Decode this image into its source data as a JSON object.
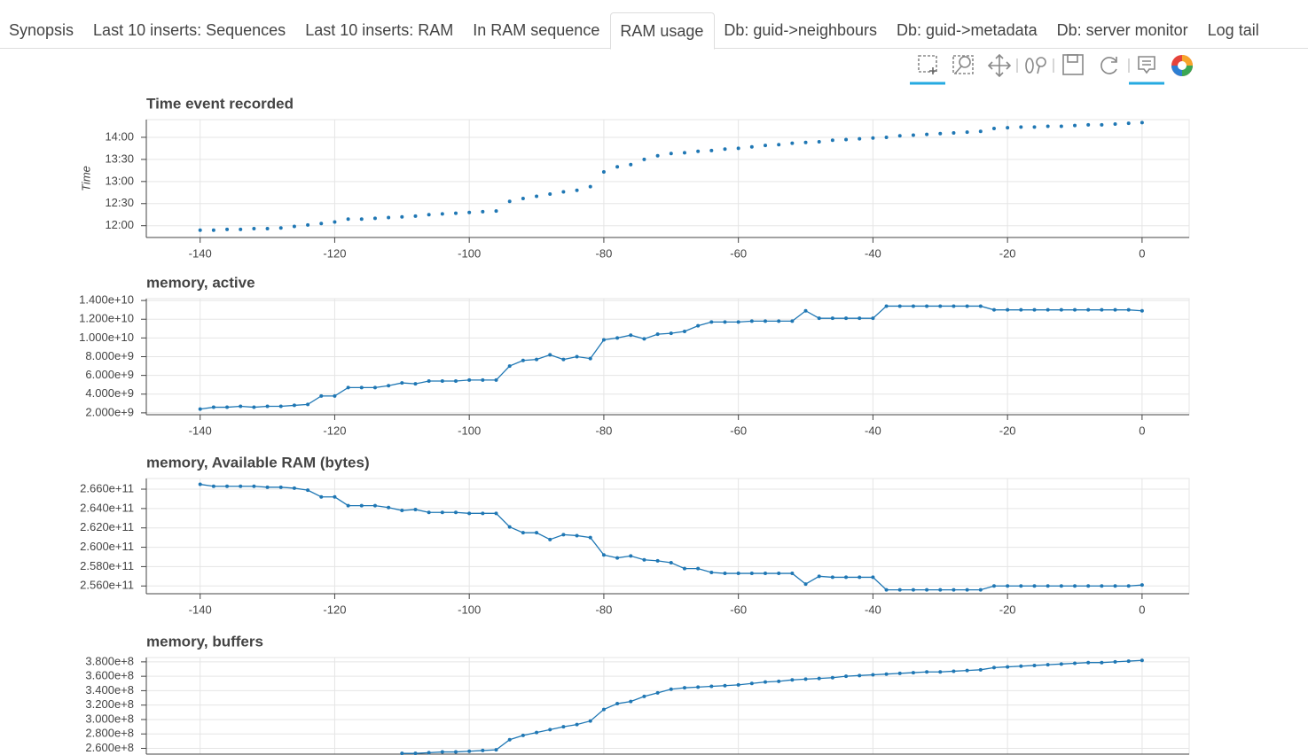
{
  "tabs": {
    "items": [
      "Synopsis",
      "Last 10 inserts: Sequences",
      "Last 10 inserts: RAM",
      "In RAM sequence",
      "RAM usage",
      "Db: guid->neighbours",
      "Db: guid->metadata",
      "Db: server monitor",
      "Log tail"
    ],
    "active": 4
  },
  "chart_data": [
    {
      "type": "scatter",
      "title": "Time event recorded",
      "y_label": "Time",
      "color": "#1f77b4",
      "grid": true,
      "x": [
        -140,
        -138,
        -136,
        -134,
        -132,
        -130,
        -128,
        -126,
        -124,
        -122,
        -120,
        -118,
        -116,
        -114,
        -112,
        -110,
        -108,
        -106,
        -104,
        -102,
        -100,
        -98,
        -96,
        -94,
        -92,
        -90,
        -88,
        -86,
        -84,
        -82,
        -80,
        -78,
        -76,
        -74,
        -72,
        -70,
        -68,
        -66,
        -64,
        -62,
        -60,
        -58,
        -56,
        -54,
        -52,
        -50,
        -48,
        -46,
        -44,
        -42,
        -40,
        -38,
        -36,
        -34,
        -32,
        -30,
        -28,
        -26,
        -24,
        -22,
        -20,
        -18,
        -16,
        -14,
        -12,
        -10,
        -8,
        -6,
        -4,
        -2,
        0
      ],
      "values": [
        714,
        714,
        715,
        715,
        716,
        716,
        717,
        719,
        721,
        723,
        725,
        729,
        729,
        730,
        731,
        732,
        733,
        735,
        736,
        737,
        738,
        739,
        740,
        753,
        757,
        760,
        763,
        766,
        768,
        773,
        793,
        800,
        803,
        810,
        815,
        818,
        819,
        821,
        822,
        824,
        825,
        827,
        829,
        830,
        832,
        833,
        834,
        836,
        837,
        838,
        839,
        840,
        842,
        843,
        844,
        845,
        846,
        847,
        848,
        852,
        853,
        854,
        854,
        855,
        855,
        856,
        857,
        857,
        858,
        859,
        860
      ],
      "xlim": [
        -148,
        7
      ],
      "xticks": [
        -140,
        -120,
        -100,
        -80,
        -60,
        -40,
        -20,
        0
      ],
      "ylim": [
        704,
        864
      ],
      "yticks": [
        {
          "value": 720,
          "label": "12:00"
        },
        {
          "value": 750,
          "label": "12:30"
        },
        {
          "value": 780,
          "label": "13:00"
        },
        {
          "value": 810,
          "label": "13:30"
        },
        {
          "value": 840,
          "label": "14:00"
        }
      ]
    },
    {
      "type": "line",
      "title": "memory, active",
      "color": "#1f77b4",
      "grid": true,
      "x": [
        -140,
        -138,
        -136,
        -134,
        -132,
        -130,
        -128,
        -126,
        -124,
        -122,
        -120,
        -118,
        -116,
        -114,
        -112,
        -110,
        -108,
        -106,
        -104,
        -102,
        -100,
        -98,
        -96,
        -94,
        -92,
        -90,
        -88,
        -86,
        -84,
        -82,
        -80,
        -78,
        -76,
        -74,
        -72,
        -70,
        -68,
        -66,
        -64,
        -62,
        -60,
        -58,
        -56,
        -54,
        -52,
        -50,
        -48,
        -46,
        -44,
        -42,
        -40,
        -38,
        -36,
        -34,
        -32,
        -30,
        -28,
        -26,
        -24,
        -22,
        -20,
        -18,
        -16,
        -14,
        -12,
        -10,
        -8,
        -6,
        -4,
        -2,
        0
      ],
      "values": [
        2400000000.0,
        2600000000.0,
        2600000000.0,
        2700000000.0,
        2600000000.0,
        2700000000.0,
        2700000000.0,
        2800000000.0,
        2900000000.0,
        3800000000.0,
        3800000000.0,
        4700000000.0,
        4700000000.0,
        4700000000.0,
        4900000000.0,
        5200000000.0,
        5100000000.0,
        5400000000.0,
        5400000000.0,
        5400000000.0,
        5500000000.0,
        5500000000.0,
        5500000000.0,
        7000000000.0,
        7600000000.0,
        7700000000.0,
        8200000000.0,
        7700000000.0,
        8000000000.0,
        7800000000.0,
        9800000000.0,
        10000000000.0,
        10300000000.0,
        9900000000.0,
        10400000000.0,
        10500000000.0,
        10700000000.0,
        11300000000.0,
        11700000000.0,
        11700000000.0,
        11700000000.0,
        11800000000.0,
        11800000000.0,
        11800000000.0,
        11800000000.0,
        12900000000.0,
        12100000000.0,
        12100000000.0,
        12100000000.0,
        12100000000.0,
        12100000000.0,
        13400000000.0,
        13400000000.0,
        13400000000.0,
        13400000000.0,
        13400000000.0,
        13400000000.0,
        13400000000.0,
        13400000000.0,
        13000000000.0,
        13000000000.0,
        13000000000.0,
        13000000000.0,
        13000000000.0,
        13000000000.0,
        13000000000.0,
        13000000000.0,
        13000000000.0,
        13000000000.0,
        13000000000.0,
        12900000000.0
      ],
      "xlim": [
        -148,
        7
      ],
      "xticks": [
        -140,
        -120,
        -100,
        -80,
        -60,
        -40,
        -20,
        0
      ],
      "ylim": [
        1800000000.0,
        14200000000.0
      ],
      "yticks": [
        {
          "value": 2000000000.0,
          "label": "2.000e+9"
        },
        {
          "value": 4000000000.0,
          "label": "4.000e+9"
        },
        {
          "value": 6000000000.0,
          "label": "6.000e+9"
        },
        {
          "value": 8000000000.0,
          "label": "8.000e+9"
        },
        {
          "value": 10000000000.0,
          "label": "1.000e+10"
        },
        {
          "value": 12000000000.0,
          "label": "1.200e+10"
        },
        {
          "value": 14000000000.0,
          "label": "1.400e+10"
        }
      ]
    },
    {
      "type": "line",
      "title": "memory, Available RAM (bytes)",
      "color": "#1f77b4",
      "grid": true,
      "x": [
        -140,
        -138,
        -136,
        -134,
        -132,
        -130,
        -128,
        -126,
        -124,
        -122,
        -120,
        -118,
        -116,
        -114,
        -112,
        -110,
        -108,
        -106,
        -104,
        -102,
        -100,
        -98,
        -96,
        -94,
        -92,
        -90,
        -88,
        -86,
        -84,
        -82,
        -80,
        -78,
        -76,
        -74,
        -72,
        -70,
        -68,
        -66,
        -64,
        -62,
        -60,
        -58,
        -56,
        -54,
        -52,
        -50,
        -48,
        -46,
        -44,
        -42,
        -40,
        -38,
        -36,
        -34,
        -32,
        -30,
        -28,
        -26,
        -24,
        -22,
        -20,
        -18,
        -16,
        -14,
        -12,
        -10,
        -8,
        -6,
        -4,
        -2,
        0
      ],
      "values": [
        266500000000.0,
        266300000000.0,
        266300000000.0,
        266300000000.0,
        266300000000.0,
        266200000000.0,
        266200000000.0,
        266100000000.0,
        265900000000.0,
        265200000000.0,
        265200000000.0,
        264300000000.0,
        264300000000.0,
        264300000000.0,
        264100000000.0,
        263800000000.0,
        263900000000.0,
        263600000000.0,
        263600000000.0,
        263600000000.0,
        263500000000.0,
        263500000000.0,
        263500000000.0,
        262100000000.0,
        261500000000.0,
        261500000000.0,
        260800000000.0,
        261300000000.0,
        261200000000.0,
        261000000000.0,
        259200000000.0,
        258900000000.0,
        259100000000.0,
        258700000000.0,
        258600000000.0,
        258400000000.0,
        257800000000.0,
        257800000000.0,
        257400000000.0,
        257300000000.0,
        257300000000.0,
        257300000000.0,
        257300000000.0,
        257300000000.0,
        257300000000.0,
        256200000000.0,
        257000000000.0,
        256900000000.0,
        256900000000.0,
        256900000000.0,
        256900000000.0,
        255600000000.0,
        255600000000.0,
        255600000000.0,
        255600000000.0,
        255600000000.0,
        255600000000.0,
        255600000000.0,
        255600000000.0,
        256000000000.0,
        256000000000.0,
        256000000000.0,
        256000000000.0,
        256000000000.0,
        256000000000.0,
        256000000000.0,
        256000000000.0,
        256000000000.0,
        256000000000.0,
        256000000000.0,
        256100000000.0
      ],
      "xlim": [
        -148,
        7
      ],
      "xticks": [
        -140,
        -120,
        -100,
        -80,
        -60,
        -40,
        -20,
        0
      ],
      "ylim": [
        255200000000.0,
        267100000000.0
      ],
      "yticks": [
        {
          "value": 256000000000.0,
          "label": "2.560e+11"
        },
        {
          "value": 258000000000.0,
          "label": "2.580e+11"
        },
        {
          "value": 260000000000.0,
          "label": "2.600e+11"
        },
        {
          "value": 262000000000.0,
          "label": "2.620e+11"
        },
        {
          "value": 264000000000.0,
          "label": "2.640e+11"
        },
        {
          "value": 266000000000.0,
          "label": "2.660e+11"
        }
      ]
    },
    {
      "type": "line",
      "title": "memory, buffers",
      "color": "#1f77b4",
      "grid": true,
      "x": [
        -110,
        -108,
        -106,
        -104,
        -102,
        -100,
        -98,
        -96,
        -94,
        -92,
        -90,
        -88,
        -86,
        -84,
        -82,
        -80,
        -78,
        -76,
        -74,
        -72,
        -70,
        -68,
        -66,
        -64,
        -62,
        -60,
        -58,
        -56,
        -54,
        -52,
        -50,
        -48,
        -46,
        -44,
        -42,
        -40,
        -38,
        -36,
        -34,
        -32,
        -30,
        -28,
        -26,
        -24,
        -22,
        -20,
        -18,
        -16,
        -14,
        -12,
        -10,
        -8,
        -6,
        -4,
        -2,
        0
      ],
      "values": [
        253000000.0,
        253000000.0,
        254000000.0,
        255000000.0,
        255000000.0,
        256000000.0,
        257000000.0,
        258000000.0,
        272000000.0,
        278000000.0,
        282000000.0,
        286000000.0,
        290000000.0,
        293000000.0,
        298000000.0,
        314000000.0,
        322000000.0,
        325000000.0,
        332000000.0,
        337000000.0,
        342000000.0,
        344000000.0,
        345000000.0,
        346000000.0,
        347000000.0,
        348000000.0,
        350000000.0,
        352000000.0,
        353000000.0,
        355000000.0,
        356000000.0,
        357000000.0,
        358000000.0,
        360000000.0,
        361000000.0,
        362000000.0,
        363000000.0,
        364000000.0,
        365000000.0,
        366000000.0,
        366000000.0,
        367000000.0,
        368000000.0,
        369000000.0,
        372000000.0,
        373000000.0,
        374000000.0,
        375000000.0,
        376000000.0,
        377000000.0,
        378000000.0,
        379000000.0,
        379000000.0,
        380000000.0,
        381000000.0,
        382000000.0
      ],
      "xlim": [
        -148,
        7
      ],
      "xticks": [
        -140,
        -120,
        -100,
        -80,
        -60,
        -40,
        -20,
        0
      ],
      "ylim": [
        252000000.0,
        386000000.0
      ],
      "yticks": [
        {
          "value": 260000000.0,
          "label": "2.600e+8"
        },
        {
          "value": 280000000.0,
          "label": "2.800e+8"
        },
        {
          "value": 300000000.0,
          "label": "3.000e+8"
        },
        {
          "value": 320000000.0,
          "label": "3.200e+8"
        },
        {
          "value": 340000000.0,
          "label": "3.400e+8"
        },
        {
          "value": 360000000.0,
          "label": "3.600e+8"
        },
        {
          "value": 380000000.0,
          "label": "3.800e+8"
        }
      ]
    }
  ]
}
